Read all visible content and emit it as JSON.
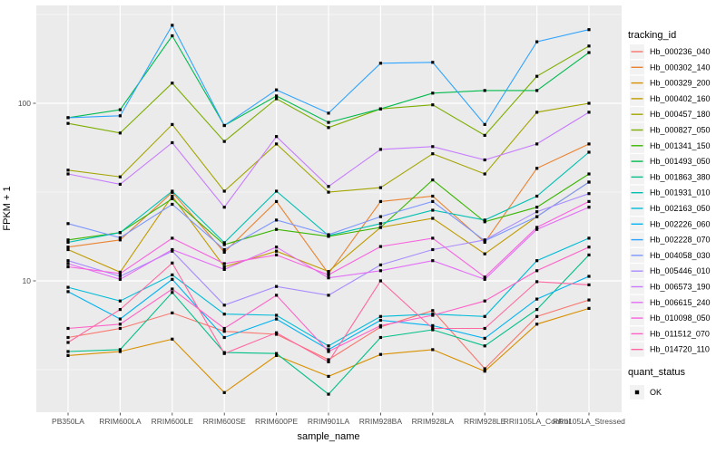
{
  "figure": {
    "background": "#FFFFFF",
    "panel_bg": "#EBEBEB",
    "grid_color": "#FFFFFF",
    "tick_color": "#333333",
    "tick_label_color": "#4D4D4D",
    "axis_title_color": "#000000",
    "x_title": "sample_name",
    "y_title": "FPKM + 1",
    "legend": {
      "tracking_title": "tracking_id",
      "quant_title": "quant_status",
      "quant_items": [
        {
          "label": "OK"
        }
      ],
      "key_bg": "#F2F2F2",
      "point_color": "#000000"
    }
  },
  "chart_data": {
    "type": "line",
    "title": "",
    "xlabel": "sample_name",
    "ylabel": "FPKM + 1",
    "y_scale": "log10",
    "y_major_ticks": [
      10,
      100
    ],
    "y_minor_gridlines": [
      3.162,
      31.62,
      316.2
    ],
    "ylim": [
      1.8,
      345
    ],
    "grid": true,
    "legend_position": "right",
    "point_marker": "small black square at every data point (quant_status = OK)",
    "categories": [
      "PB350LA",
      "RRIM600LA",
      "RRIM600LE",
      "RRIM600SE",
      "RRIM600PE",
      "RRIM901LA",
      "RRIM928BA",
      "RRIM928LA",
      "RRIM928LE",
      "RRII105LA_Control",
      "RRII105LA_Stressed"
    ],
    "series": [
      {
        "name": "Hb_000236_040",
        "color": "#F8766D",
        "values": [
          4.8,
          5.4,
          6.6,
          5.2,
          5.0,
          3.6,
          5.5,
          6.8,
          3.2,
          6.3,
          7.8
        ]
      },
      {
        "name": "Hb_000302_140",
        "color": "#EA8331",
        "values": [
          15.5,
          17.0,
          31.5,
          14.5,
          28,
          11.0,
          28,
          30,
          16.5,
          43,
          59
        ]
      },
      {
        "name": "Hb_000329_200",
        "color": "#D89000",
        "values": [
          3.8,
          4.0,
          4.7,
          2.35,
          3.8,
          2.9,
          3.85,
          4.1,
          3.1,
          5.7,
          7.0
        ]
      },
      {
        "name": "Hb_000402_160",
        "color": "#C09B00",
        "values": [
          15.0,
          11.2,
          30,
          12.0,
          14.7,
          11.3,
          20,
          22.5,
          14.2,
          23,
          36
        ]
      },
      {
        "name": "Hb_000457_180",
        "color": "#A3A500",
        "values": [
          42,
          38.5,
          76,
          32,
          59,
          31.6,
          33.5,
          52,
          40,
          89,
          100
        ]
      },
      {
        "name": "Hb_000827_050",
        "color": "#7CAE00",
        "values": [
          77,
          68,
          130,
          61,
          106,
          73,
          93,
          98,
          66,
          142,
          210
        ]
      },
      {
        "name": "Hb_001341_150",
        "color": "#39B600",
        "values": [
          17.0,
          18.7,
          29,
          16.0,
          19.5,
          17.8,
          20,
          37,
          21.5,
          26,
          40
        ]
      },
      {
        "name": "Hb_001493_050",
        "color": "#00BB4E",
        "values": [
          83,
          92,
          240,
          75,
          110,
          78,
          93,
          114,
          118,
          118,
          193
        ]
      },
      {
        "name": "Hb_001863_380",
        "color": "#00C087",
        "values": [
          4.0,
          4.1,
          8.6,
          3.95,
          3.9,
          2.3,
          4.8,
          5.3,
          4.3,
          6.9,
          14
        ]
      },
      {
        "name": "Hb_001931_010",
        "color": "#00C0B2",
        "values": [
          16.5,
          18.7,
          32,
          16.4,
          32,
          18.0,
          21,
          25,
          22,
          30,
          53
        ]
      },
      {
        "name": "Hb_002163_050",
        "color": "#00BCD8",
        "values": [
          9.2,
          7.7,
          10.8,
          6.5,
          6.4,
          4.3,
          6.3,
          6.5,
          6.3,
          13,
          17.4
        ]
      },
      {
        "name": "Hb_002226_060",
        "color": "#00B3F2",
        "values": [
          8.7,
          6.1,
          10.2,
          4.8,
          6.1,
          4.1,
          6.0,
          5.6,
          4.75,
          7.9,
          10.6
        ]
      },
      {
        "name": "Hb_002228_070",
        "color": "#2FA4FF",
        "values": [
          83,
          85,
          275,
          75,
          119,
          88,
          168,
          170,
          76,
          222,
          260
        ]
      },
      {
        "name": "Hb_004058_030",
        "color": "#7C96FF",
        "values": [
          21,
          17.5,
          27,
          15.0,
          22,
          18.2,
          23,
          28,
          16.8,
          23,
          36
        ]
      },
      {
        "name": "Hb_005446_010",
        "color": "#A98CFF",
        "values": [
          13.0,
          10.6,
          14.7,
          7.3,
          9.3,
          8.3,
          12.3,
          15,
          17,
          24.5,
          31
        ]
      },
      {
        "name": "Hb_006573_190",
        "color": "#C77CFF",
        "values": [
          40,
          35,
          60,
          26,
          65,
          34,
          55,
          57,
          48,
          59,
          89
        ]
      },
      {
        "name": "Hb_006615_240",
        "color": "#E36EF6",
        "values": [
          12.5,
          10.2,
          15.0,
          11.6,
          15.5,
          10.4,
          11.4,
          13,
          10.2,
          19.5,
          26
        ]
      },
      {
        "name": "Hb_010098_050",
        "color": "#F863DF",
        "values": [
          12.0,
          11.0,
          17.4,
          12.5,
          14.0,
          10.8,
          15.6,
          17.4,
          10.5,
          20,
          28
        ]
      },
      {
        "name": "Hb_011512_070",
        "color": "#FF61C7",
        "values": [
          5.4,
          5.7,
          9.0,
          5.4,
          8.3,
          4.0,
          5.6,
          6.4,
          7.7,
          11.4,
          15.5
        ]
      },
      {
        "name": "Hb_014720_110",
        "color": "#FF68A1",
        "values": [
          4.5,
          6.9,
          12.6,
          3.9,
          5.1,
          3.5,
          10.0,
          5.4,
          5.4,
          9.9,
          9.5
        ]
      }
    ]
  }
}
